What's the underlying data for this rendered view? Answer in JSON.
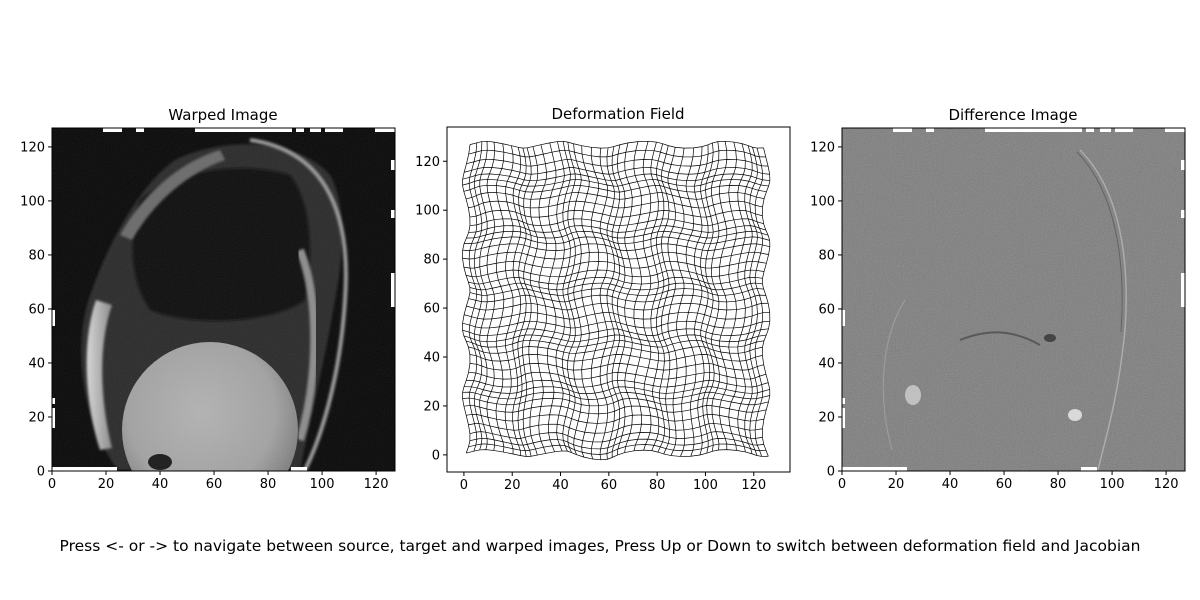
{
  "figure": {
    "caption": "Press <- or -> to navigate between source, target and warped images, Press Up or Down to switch between deformation field and Jacobian"
  },
  "chart_data": [
    {
      "type": "image",
      "title": "Warped Image",
      "xlabel": "",
      "ylabel": "",
      "xlim": [
        0,
        127
      ],
      "ylim": [
        0,
        127
      ],
      "xticks": [
        0,
        20,
        40,
        60,
        80,
        100,
        120
      ],
      "yticks": [
        0,
        20,
        40,
        60,
        80,
        100,
        120
      ],
      "grid": false,
      "content": "grayscale MRI slice (sagittal), dark background, bright circular organ at bottom center"
    },
    {
      "type": "line",
      "title": "Deformation Field",
      "xlabel": "",
      "ylabel": "",
      "xlim": [
        -7,
        135
      ],
      "ylim": [
        -7,
        134
      ],
      "xticks": [
        0,
        20,
        40,
        60,
        80,
        100,
        120
      ],
      "yticks": [
        0,
        20,
        40,
        60,
        80,
        100,
        120
      ],
      "grid": false,
      "grid_lines_spacing": 3,
      "grid_extent": [
        0,
        126
      ],
      "line_color": "#000000"
    },
    {
      "type": "image",
      "title": "Difference Image",
      "xlabel": "",
      "ylabel": "",
      "xlim": [
        0,
        127
      ],
      "ylim": [
        0,
        127
      ],
      "xticks": [
        0,
        20,
        40,
        60,
        80,
        100,
        120
      ],
      "yticks": [
        0,
        20,
        40,
        60,
        80,
        100,
        120
      ],
      "grid": false,
      "content": "mid-gray difference map with faint edge structures"
    }
  ]
}
